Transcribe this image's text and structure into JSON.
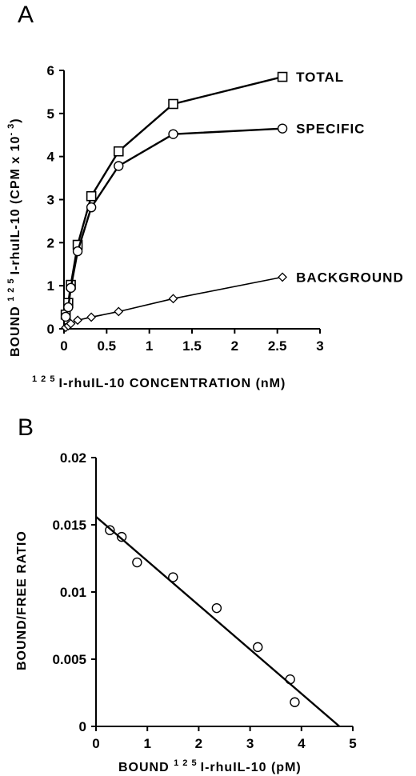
{
  "chart_data": [
    {
      "panel_label": "A",
      "type": "line",
      "xlabel_sup": "1 2 5",
      "xlabel": "I-rhuIL-10   CONCENTRATION   (nM)",
      "ylabel_prefix": "BOUND",
      "ylabel_sup": "1 2 5",
      "ylabel": "I-rhuIL-10   (CPM  x  10",
      "ylabel_exp": "- 3",
      "ylabel_suffix": ")",
      "xlim": [
        0,
        3
      ],
      "ylim": [
        0,
        6
      ],
      "xticks": [
        "0",
        "0.5",
        "1",
        "1.5",
        "2",
        "2.5",
        "3"
      ],
      "yticks": [
        "0",
        "1",
        "2",
        "3",
        "4",
        "5",
        "6"
      ],
      "grid": false,
      "series": [
        {
          "name": "TOTAL",
          "marker": "square",
          "x": [
            0.02,
            0.05,
            0.08,
            0.16,
            0.32,
            0.64,
            1.28,
            2.56
          ],
          "y": [
            0.33,
            0.6,
            1.02,
            1.95,
            3.08,
            4.12,
            5.22,
            5.85
          ]
        },
        {
          "name": "SPECIFIC",
          "marker": "circle",
          "x": [
            0.02,
            0.05,
            0.08,
            0.16,
            0.32,
            0.64,
            1.28,
            2.56
          ],
          "y": [
            0.28,
            0.5,
            0.95,
            1.8,
            2.82,
            3.78,
            4.52,
            4.65
          ]
        },
        {
          "name": "BACKGROUND",
          "marker": "diamond",
          "x": [
            0.02,
            0.05,
            0.08,
            0.16,
            0.32,
            0.64,
            1.28,
            2.56
          ],
          "y": [
            0.03,
            0.07,
            0.12,
            0.2,
            0.27,
            0.4,
            0.7,
            1.2
          ]
        }
      ]
    },
    {
      "panel_label": "B",
      "type": "scatter",
      "xlabel_prefix": "BOUND",
      "xlabel_sup": "1 2 5",
      "xlabel": "I-rhuIL-10   (pM)",
      "ylabel": "BOUND/FREE  RATIO",
      "xlim": [
        0,
        5
      ],
      "ylim": [
        0,
        0.02
      ],
      "xticks": [
        "0",
        "1",
        "2",
        "3",
        "4",
        "5"
      ],
      "yticks": [
        "0",
        "0.005",
        "0.01",
        "0.015",
        "0.02"
      ],
      "grid": false,
      "points": {
        "x": [
          0.27,
          0.5,
          0.8,
          1.5,
          2.35,
          3.15,
          3.78,
          3.87
        ],
        "y": [
          0.0146,
          0.0141,
          0.0122,
          0.0111,
          0.0088,
          0.0059,
          0.0035,
          0.0018
        ]
      },
      "fit_line": {
        "x": [
          0,
          4.74
        ],
        "y": [
          0.0156,
          0
        ]
      }
    }
  ]
}
